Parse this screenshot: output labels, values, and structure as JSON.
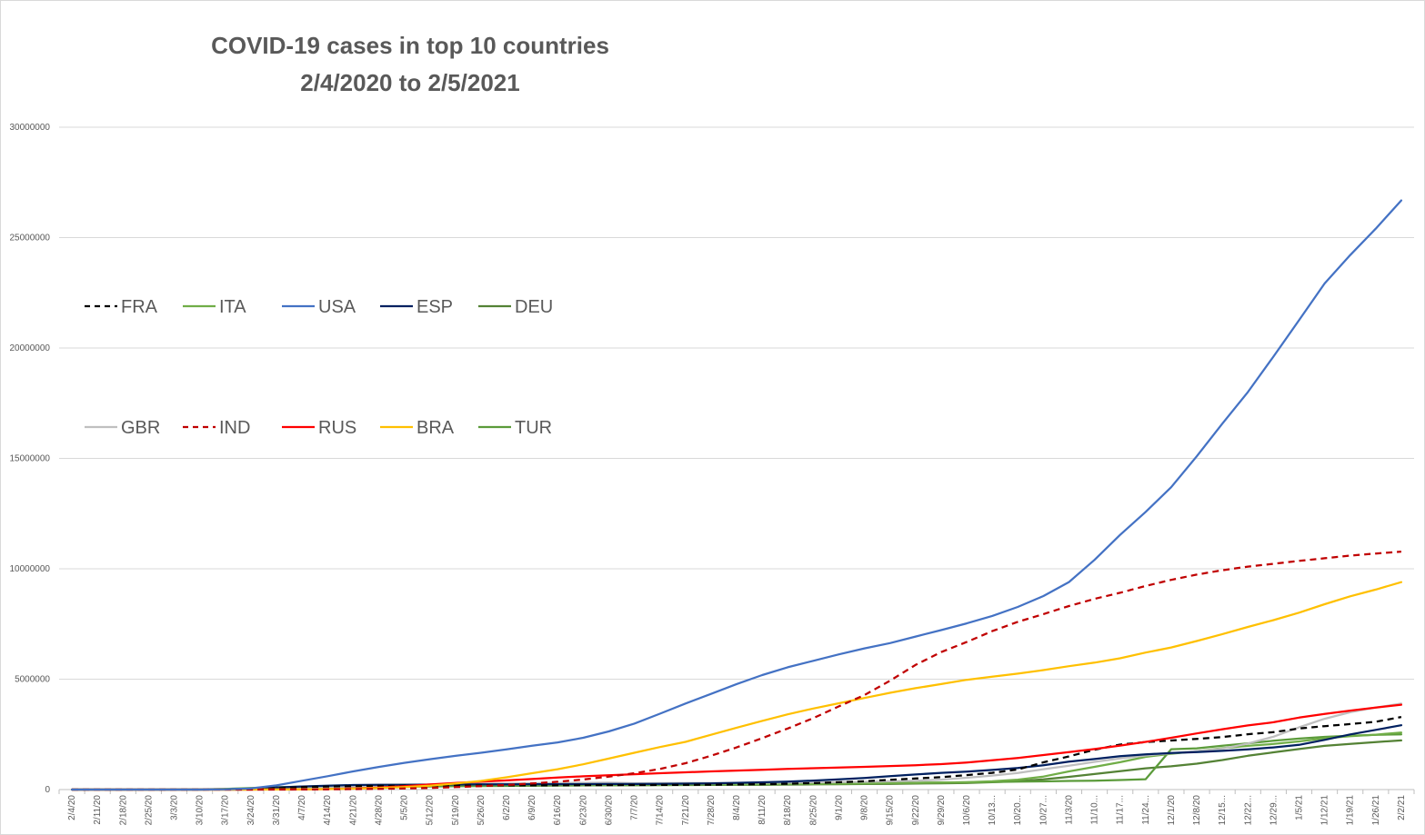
{
  "chart_data": {
    "type": "line",
    "title_lines": [
      "COVID-19 cases in top 10 countries",
      "2/4/2020 to 2/5/2021"
    ],
    "xlabel": "",
    "ylabel": "",
    "ylim": [
      0,
      30000000
    ],
    "yticks": [
      "0",
      "5000000",
      "10000000",
      "15000000",
      "20000000",
      "25000000",
      "30000000"
    ],
    "ytick_values": [
      0,
      5000000,
      10000000,
      15000000,
      20000000,
      25000000,
      30000000
    ],
    "x_categories": [
      "2/4/20",
      "2/11/20",
      "2/18/20",
      "2/25/20",
      "3/3/20",
      "3/10/20",
      "3/17/20",
      "3/24/20",
      "3/31/20",
      "4/7/20",
      "4/14/20",
      "4/21/20",
      "4/28/20",
      "5/5/20",
      "5/12/20",
      "5/19/20",
      "5/26/20",
      "6/2/20",
      "6/9/20",
      "6/16/20",
      "6/23/20",
      "6/30/20",
      "7/7/20",
      "7/14/20",
      "7/21/20",
      "7/28/20",
      "8/4/20",
      "8/11/20",
      "8/18/20",
      "8/25/20",
      "9/1/20",
      "9/8/20",
      "9/15/20",
      "9/22/20",
      "9/29/20",
      "10/6/20",
      "10/13...",
      "10/20...",
      "10/27...",
      "11/3/20",
      "11/10...",
      "11/17...",
      "11/24...",
      "12/1/20",
      "12/8/20",
      "12/15...",
      "12/22...",
      "12/29...",
      "1/5/21",
      "1/12/21",
      "1/19/21",
      "1/26/21",
      "2/2/21"
    ],
    "grid": "horizontal",
    "legend_placement": "upper-left",
    "series": [
      {
        "name": "FRA",
        "color": "#000000",
        "dash": "dashed",
        "values": [
          6,
          11,
          12,
          12,
          212,
          1784,
          7730,
          22302,
          56989,
          109069,
          137877,
          158050,
          168396,
          174191,
          177547,
          179927,
          182469,
          188752,
          191102,
          194153,
          195915,
          202063,
          205499,
          209640,
          214917,
          221077,
          228576,
          242899,
          262132,
          293024,
          331946,
          373911,
          444111,
          502098,
          563704,
          653509,
          756472,
          910277,
          1235132,
          1502763,
          1807479,
          2036755,
          2153815,
          2222488,
          2295908,
          2376852,
          2505875,
          2600498,
          2767312,
          2872754,
          2965117,
          3069695,
          3289280
        ]
      },
      {
        "name": "ITA",
        "color": "#70ad47",
        "dash": "solid",
        "values": [
          2,
          3,
          3,
          322,
          2502,
          10149,
          31506,
          69176,
          105792,
          135586,
          162488,
          183957,
          201505,
          213013,
          221216,
          226699,
          230555,
          233515,
          235561,
          237500,
          238833,
          240578,
          241819,
          243344,
          245032,
          246776,
          248803,
          251713,
          255278,
          261174,
          269214,
          280153,
          291442,
          302537,
          314861,
          333940,
          372799,
          449648,
          589766,
          824879,
          1028424,
          1238072,
          1480874,
          1620901,
          1742557,
          1870576,
          1977370,
          2067487,
          2181619,
          2319036,
          2414166,
          2485956,
          2583790
        ]
      },
      {
        "name": "USA",
        "color": "#4472c4",
        "dash": "solid",
        "values": [
          11,
          13,
          15,
          15,
          107,
          994,
          6421,
          53740,
          188592,
          400335,
          606293,
          822994,
          1026002,
          1210207,
          1374011,
          1524961,
          1667620,
          1820527,
          1982076,
          2134973,
          2347102,
          2632980,
          2988798,
          3434839,
          3897734,
          4333214,
          4777542,
          5186133,
          5538108,
          5832745,
          6123201,
          6396054,
          6635751,
          6929211,
          7221237,
          7528437,
          7863916,
          8271452,
          8766278,
          9400582,
          10401616,
          11535089,
          12574447,
          13696426,
          15093916,
          16575932,
          18006346,
          19611113,
          21257327,
          22921891,
          24205451,
          25404312,
          26683765
        ]
      },
      {
        "name": "ESP",
        "color": "#002060",
        "dash": "solid",
        "values": [
          1,
          2,
          2,
          12,
          165,
          1695,
          11748,
          39885,
          94417,
          140510,
          172541,
          204178,
          212917,
          219329,
          227436,
          232037,
          236259,
          239638,
          241717,
          243605,
          246752,
          249271,
          252513,
          256619,
          266194,
          280610,
          302814,
          329784,
          359082,
          405436,
          462858,
          525549,
          603167,
          682267,
          758172,
          813412,
          888968,
          974449,
          1098320,
          1264517,
          1381218,
          1510023,
          1594844,
          1652405,
          1699145,
          1751884,
          1817448,
          1910218,
          2024904,
          2252164,
          2499560,
          2705001,
          2913425
        ]
      },
      {
        "name": "DEU",
        "color": "#548235",
        "dash": "solid",
        "values": [
          12,
          16,
          16,
          18,
          196,
          1565,
          9257,
          32986,
          71808,
          107663,
          131359,
          150648,
          159912,
          166152,
          171324,
          176007,
          179986,
          183271,
          186109,
          188604,
          192480,
          195392,
          198178,
          200843,
          204183,
          208546,
          212022,
          218519,
          226914,
          236429,
          244802,
          252298,
          260355,
          270070,
          282730,
          301573,
          334585,
          380762,
          464239,
          577593,
          705687,
          833307,
          961320,
          1053869,
          1171324,
          1337078,
          1530180,
          1687185,
          1835038,
          1978590,
          2068002,
          2150333,
          2224911
        ]
      },
      {
        "name": "GBR",
        "color": "#bfbfbf",
        "dash": "solid",
        "values": [
          2,
          9,
          9,
          13,
          51,
          373,
          1950,
          8077,
          25150,
          55242,
          93873,
          129044,
          161145,
          190584,
          223060,
          248293,
          265227,
          279856,
          289140,
          297325,
          306210,
          313483,
          286979,
          292931,
          297146,
          301455,
          306293,
          313798,
          320286,
          327798,
          337168,
          352560,
          374228,
          403551,
          450242,
          535000,
          634920,
          753009,
          920664,
          1082183,
          1256725,
          1410732,
          1542412,
          1647229,
          1737860,
          1848133,
          2085101,
          2394712,
          2820838,
          3207474,
          3502855,
          3716047,
          3892459
        ]
      },
      {
        "name": "IND",
        "color": "#c00000",
        "dash": "dashed",
        "values": [
          3,
          3,
          3,
          3,
          5,
          56,
          142,
          536,
          1397,
          5194,
          11438,
          20080,
          31332,
          49391,
          74281,
          112359,
          158333,
          207615,
          276583,
          354065,
          456183,
          585493,
          742417,
          936181,
          1193078,
          1531669,
          1908254,
          2329638,
          2767273,
          3234474,
          3769523,
          4280422,
          4930236,
          5646010,
          6225763,
          6685082,
          7175880,
          7597063,
          7946429,
          8313876,
          8636011,
          8912907,
          9222216,
          9499413,
          9735850,
          9932547,
          10099066,
          10224303,
          10356844,
          10479179,
          10595639,
          10689527,
          10777284
        ]
      },
      {
        "name": "RUS",
        "color": "#ff0000",
        "dash": "solid",
        "values": [
          2,
          2,
          2,
          2,
          3,
          20,
          114,
          495,
          2337,
          7497,
          21102,
          52763,
          93558,
          155370,
          232243,
          299941,
          362342,
          414878,
          476658,
          545458,
          599705,
          647849,
          694230,
          739947,
          783328,
          823515,
          861423,
          897599,
          932493,
          968297,
          1000048,
          1030690,
          1064438,
          1103399,
          1151438,
          1225889,
          1326178,
          1431635,
          1563976,
          1693454,
          1836960,
          1991998,
          2162503,
          2347401,
          2541199,
          2734454,
          2906503,
          3050248,
          3260138,
          3425269,
          3574330,
          3715895,
          3842145
        ]
      },
      {
        "name": "BRA",
        "color": "#ffc000",
        "dash": "solid",
        "values": [
          0,
          0,
          0,
          1,
          2,
          34,
          291,
          2201,
          5717,
          13717,
          25262,
          43079,
          73235,
          114715,
          178214,
          271628,
          391222,
          555383,
          739503,
          923189,
          1145906,
          1402041,
          1668589,
          1926824,
          2159654,
          2483191,
          2801921,
          3109630,
          3407354,
          3669995,
          3908272,
          4147794,
          4382263,
          4591364,
          4777522,
          4969141,
          5113628,
          5250727,
          5409854,
          5590025,
          5747660,
          5945849,
          6204220,
          6436650,
          6728452,
          7040608,
          7365517,
          7675973,
          8013708,
          8394253,
          8753920,
          9058687,
          9396293
        ]
      },
      {
        "name": "TUR",
        "color": "#5b9b3a",
        "dash": "solid",
        "values": [
          0,
          0,
          0,
          0,
          0,
          1,
          98,
          1872,
          13531,
          38226,
          65111,
          95591,
          114653,
          129491,
          141475,
          151615,
          158762,
          165555,
          172114,
          181298,
          190165,
          199906,
          207897,
          214001,
          220558,
          228924,
          234934,
          240804,
          249309,
          258249,
          271705,
          283270,
          294620,
          308069,
          320070,
          330454,
          343955,
          357905,
          372304,
          391739,
          402678,
          432092,
          467730,
          1828867,
          1866345,
          1982090,
          2096217,
          2208652,
          2307581,
          2387101,
          2435247,
          2477463,
          2501079
        ]
      }
    ]
  }
}
